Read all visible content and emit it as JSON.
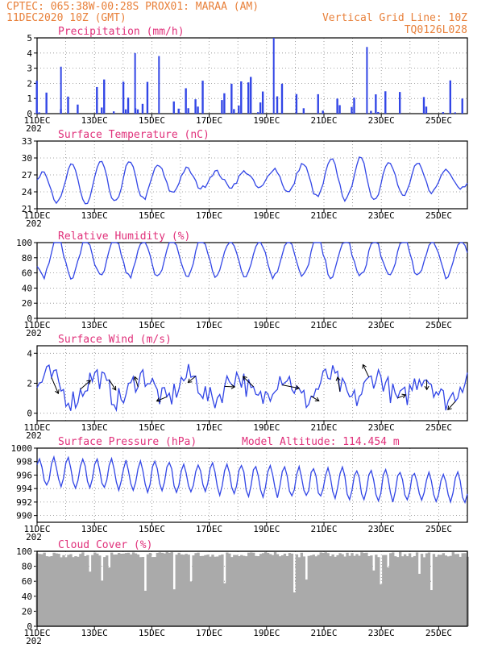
{
  "header": {
    "line1_left": "CPTEC:   065:38W-00:28S   PROX01: MARAA (AM)",
    "line2_left": "11DEC2020 10Z (GMT)",
    "line1_right": "Vertical Grid Line: 10Z",
    "line2_right": "TQ0126L028"
  },
  "x_axis": {
    "ticks": [
      "11DEC",
      "13DEC",
      "15DEC",
      "17DEC",
      "19DEC",
      "21DEC",
      "23DEC",
      "25DEC"
    ],
    "year_fragment": "202"
  },
  "colors": {
    "series": "#3246e6",
    "cloud": "#aaaaaa",
    "header": "#e8803a",
    "title": "#e0307a"
  },
  "chart_data": [
    {
      "type": "bar",
      "title": "Precipitation (mm/h)",
      "ylim": [
        0,
        5
      ],
      "yticks": [
        "0",
        "1",
        "2",
        "3",
        "4",
        "5"
      ],
      "peaks": [
        {
          "x": "12DEC 06Z",
          "y": 3.1
        },
        {
          "x": "14DEC 20Z",
          "y": 4.0
        },
        {
          "x": "15DEC 16Z",
          "y": 3.8
        },
        {
          "x": "19DEC 16Z",
          "y": 5.0
        },
        {
          "x": "22DEC 22Z",
          "y": 4.4
        }
      ],
      "grid": true
    },
    {
      "type": "line",
      "title": "Surface Temperature (nC)",
      "ylim": [
        21,
        33
      ],
      "yticks": [
        "21",
        "24",
        "27",
        "30",
        "33"
      ],
      "grid": true
    },
    {
      "type": "line",
      "title": "Relative Humidity (%)",
      "ylim": [
        0,
        100
      ],
      "yticks": [
        "0",
        "20",
        "40",
        "60",
        "80",
        "100"
      ],
      "grid": true
    },
    {
      "type": "line",
      "title": "Surface Wind (m/s)",
      "ylim": [
        -0.5,
        4.5
      ],
      "yticks": [
        "0",
        "2",
        "4"
      ],
      "grid": true
    },
    {
      "type": "line",
      "title": "Surface Pressure (hPa)",
      "subtitle": "Model Altitude: 114.454  m",
      "ylim": [
        989,
        1000
      ],
      "yticks": [
        "990",
        "992",
        "994",
        "996",
        "998",
        "1000"
      ],
      "grid": true
    },
    {
      "type": "area",
      "title": "Cloud Cover (%)",
      "ylim": [
        0,
        100
      ],
      "yticks": [
        "0",
        "20",
        "40",
        "60",
        "80",
        "100"
      ],
      "grid": true
    }
  ]
}
